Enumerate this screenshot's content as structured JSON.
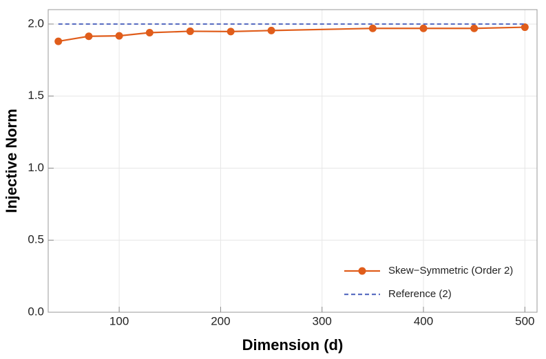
{
  "chart_data": {
    "type": "line",
    "x_label": "Dimension (d)",
    "y_label": "Injective Norm",
    "xlim": [
      30,
      512
    ],
    "ylim": [
      0,
      2.1
    ],
    "xticks": [
      100,
      200,
      300,
      400,
      500
    ],
    "yticks": [
      {
        "value": 0,
        "label": "0.0"
      },
      0.5,
      {
        "value": 1,
        "label": "1.0"
      },
      1.5,
      {
        "value": 2,
        "label": "2.0"
      }
    ],
    "grid": true,
    "legend": "lower right",
    "series": [
      {
        "name": "Skew−Symmetric (Order 2)",
        "color": "#e05d1b",
        "style": "solid",
        "marker": true,
        "x": [
          40,
          70,
          100,
          130,
          170,
          210,
          250,
          350,
          400,
          450,
          500
        ],
        "values": [
          1.88,
          1.915,
          1.918,
          1.94,
          1.95,
          1.948,
          1.955,
          1.97,
          1.97,
          1.97,
          1.978
        ]
      },
      {
        "name": "Reference (2)",
        "color": "#5b6fc2",
        "style": "dashed",
        "marker": false,
        "x": [
          40,
          500
        ],
        "values": [
          2,
          2
        ]
      }
    ]
  }
}
